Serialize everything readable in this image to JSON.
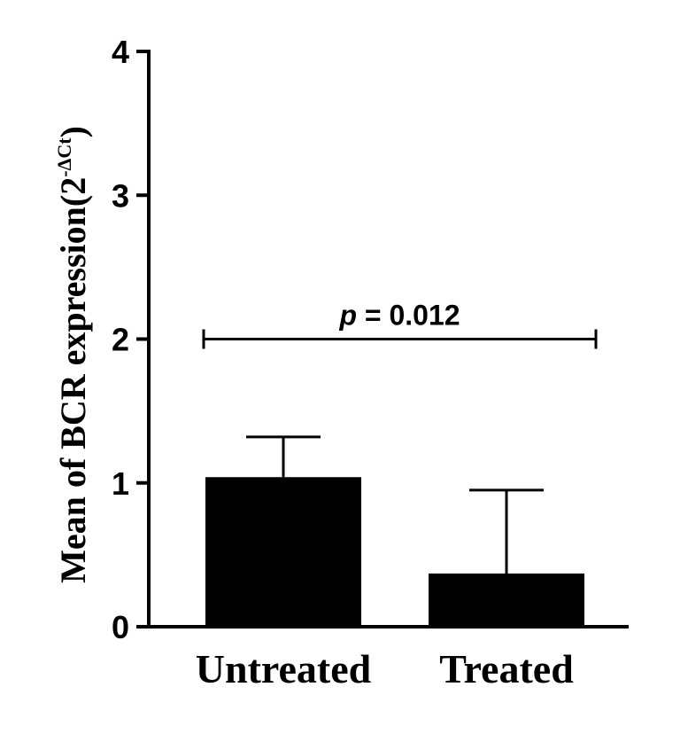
{
  "chart_data": {
    "type": "bar",
    "categories": [
      "Untreated",
      "Treated"
    ],
    "values": [
      1.04,
      0.37
    ],
    "error_upper": [
      1.32,
      0.95
    ],
    "ylabel": {
      "main": "Mean of BCR expression",
      "unit_base": "(2",
      "unit_exp": "-ΔCt",
      "unit_close": ")"
    },
    "ylim": [
      0,
      4
    ],
    "yticks": [
      "0",
      "1",
      "2",
      "3",
      "4"
    ],
    "annotation": {
      "p_symbol": "p",
      "p_text": " = 0.012",
      "y": 2.0,
      "from": "Untreated",
      "to": "Treated"
    },
    "grid": false,
    "bar_color": "#000000"
  }
}
